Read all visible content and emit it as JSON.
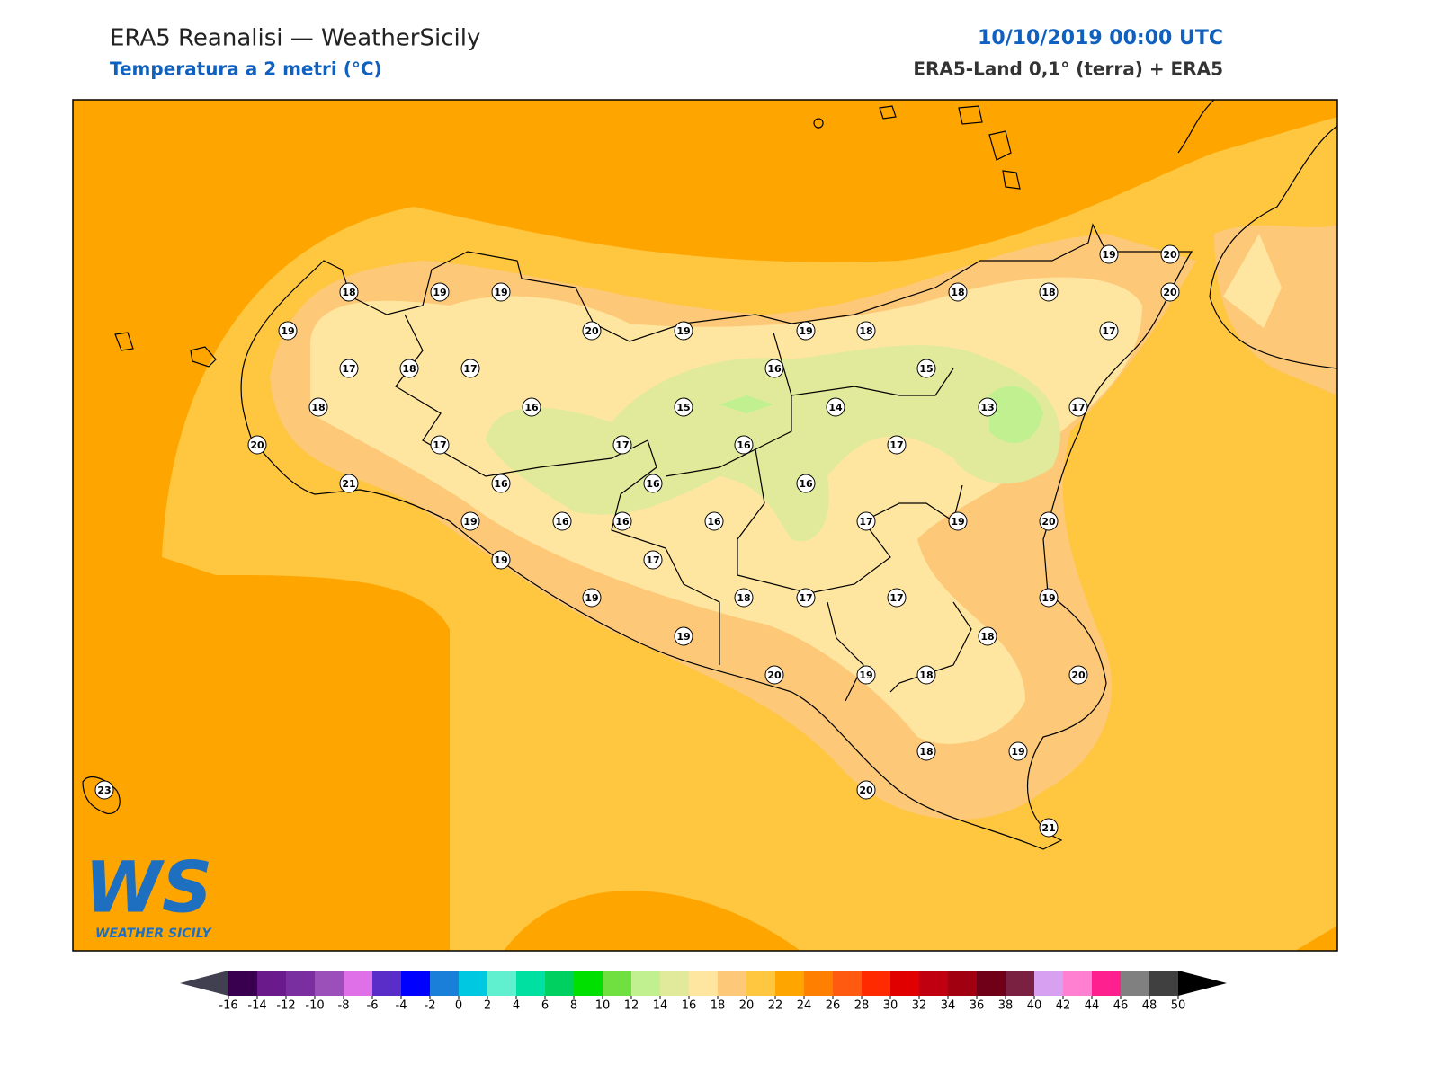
{
  "header": {
    "title": "ERA5 Reanalisi — WeatherSicily",
    "subtitle": "Temperatura a 2 metri (°C)",
    "date": "10/10/2019 00:00 UTC",
    "source": "ERA5-Land 0,1° (terra) + ERA5"
  },
  "logo": {
    "mark": "WS",
    "name": "WEATHER SICILY"
  },
  "stations": [
    18,
    19,
    19,
    19,
    20,
    19,
    19,
    18,
    18,
    18,
    19,
    20,
    20,
    17,
    17,
    18,
    17,
    16,
    15,
    18,
    16,
    15,
    14,
    13,
    17,
    20,
    17,
    17,
    16,
    17,
    21,
    16,
    16,
    16,
    19,
    16,
    16,
    16,
    17,
    19,
    20,
    19,
    17,
    19,
    18,
    17,
    17,
    19,
    18,
    19,
    20,
    19,
    18,
    20,
    18,
    19,
    20,
    23,
    21
  ],
  "colorbar": {
    "ticks": [
      -16,
      -14,
      -12,
      -10,
      -8,
      -6,
      -4,
      -2,
      0,
      2,
      4,
      6,
      8,
      10,
      12,
      14,
      16,
      18,
      20,
      22,
      24,
      26,
      28,
      30,
      32,
      34,
      36,
      38,
      40,
      42,
      44,
      46,
      48,
      50
    ],
    "colors": [
      "#3a0050",
      "#6a1a8a",
      "#7a2fa0",
      "#9b4fb8",
      "#e070e8",
      "#5a2dc8",
      "#0000ff",
      "#1a7fd9",
      "#00c8e0",
      "#60f0d0",
      "#00e0a0",
      "#00d060",
      "#00e000",
      "#70e040",
      "#c0f090",
      "#e0ea9a",
      "#ffe6a0",
      "#fdc878",
      "#ffc640",
      "#ffa500",
      "#ff8000",
      "#ff5a10",
      "#ff2a00",
      "#e00000",
      "#c00010",
      "#a00010",
      "#700018",
      "#7a2040",
      "#d8a0f0",
      "#ff80d0",
      "#ff2090",
      "#808080",
      "#404040"
    ],
    "under": "#404050",
    "over": "#000000"
  }
}
